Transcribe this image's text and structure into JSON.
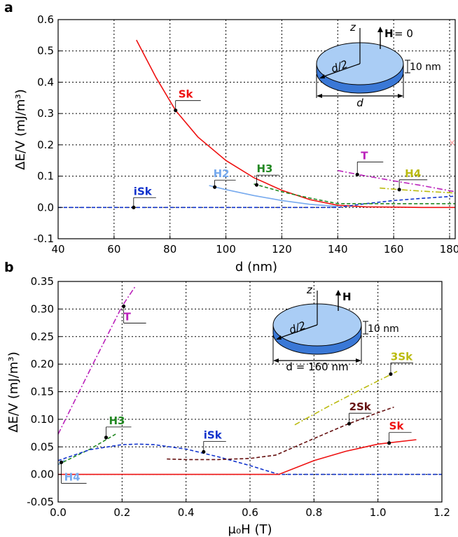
{
  "chart_data": [
    {
      "panel": "a",
      "type": "line",
      "xlabel": "d (nm)",
      "ylabel": "ΔE/V (mJ/m³)",
      "xlim": [
        40,
        182
      ],
      "ylim": [
        -0.1,
        0.6
      ],
      "xticks": [
        "40",
        "60",
        "80",
        "100",
        "120",
        "140",
        "160",
        "180"
      ],
      "yticks": [
        "-0.1",
        "0.0",
        "0.1",
        "0.2",
        "0.3",
        "0.4",
        "0.5",
        "0.6"
      ],
      "grid": true,
      "series": [
        {
          "name": "Sk",
          "color": "#ee1111",
          "dash": "solid",
          "x": [
            68,
            75,
            82,
            90,
            100,
            110,
            120,
            130,
            140,
            150,
            160,
            170,
            182
          ],
          "y": [
            0.535,
            0.415,
            0.31,
            0.225,
            0.15,
            0.095,
            0.055,
            0.025,
            0.007,
            0.002,
            0.001,
            0.0,
            0.0
          ],
          "marker": {
            "x": 82,
            "y": 0.31
          }
        },
        {
          "name": "iSk",
          "color": "#1133cc",
          "dash": "dashed",
          "x": [
            40,
            60,
            80,
            100,
            120,
            140,
            150,
            160,
            170,
            182
          ],
          "y": [
            0.0,
            0.0,
            0.0,
            0.0,
            0.0,
            0.0,
            0.012,
            0.022,
            0.029,
            0.036
          ],
          "marker": {
            "x": 67,
            "y": 0.0
          }
        },
        {
          "name": "H2",
          "color": "#77aaee",
          "dash": "solid",
          "x": [
            94,
            100,
            110,
            120,
            130,
            140
          ],
          "y": [
            0.07,
            0.057,
            0.038,
            0.022,
            0.01,
            0.003
          ],
          "marker": {
            "x": 96,
            "y": 0.065
          }
        },
        {
          "name": "H3",
          "color": "#228822",
          "dash": "dashed",
          "x": [
            110,
            120,
            130,
            140,
            150,
            160,
            170,
            182
          ],
          "y": [
            0.075,
            0.05,
            0.03,
            0.012,
            0.012,
            0.012,
            0.012,
            0.012
          ],
          "marker": {
            "x": 111,
            "y": 0.072
          }
        },
        {
          "name": "T",
          "color": "#bb22bb",
          "dash": "dashdot",
          "x": [
            140,
            148,
            160,
            170,
            182
          ],
          "y": [
            0.118,
            0.104,
            0.085,
            0.07,
            0.05
          ],
          "marker": {
            "x": 147,
            "y": 0.105
          }
        },
        {
          "name": "H4",
          "color": "#bbbb11",
          "dash": "dashdot",
          "x": [
            155,
            162,
            170,
            182
          ],
          "y": [
            0.062,
            0.057,
            0.052,
            0.046
          ],
          "marker": {
            "x": 162,
            "y": 0.057
          }
        }
      ],
      "inset": {
        "axis_label": "z",
        "field_label": "H",
        "field_value": "= 0",
        "radius_label": "d/2",
        "thickness_label": "10 nm",
        "diameter_label": "d"
      }
    },
    {
      "panel": "b",
      "type": "line",
      "xlabel": "μ₀H (T)",
      "ylabel": "ΔE/V (mJ/m³)",
      "xlim": [
        0.0,
        1.2
      ],
      "ylim": [
        -0.05,
        0.35
      ],
      "xticks": [
        "0.0",
        "0.2",
        "0.4",
        "0.6",
        "0.8",
        "1.0",
        "1.2"
      ],
      "yticks": [
        "-0.05",
        "0.00",
        "0.05",
        "0.10",
        "0.15",
        "0.20",
        "0.25",
        "0.30",
        "0.35"
      ],
      "grid": true,
      "series": [
        {
          "name": "T",
          "color": "#bb22bb",
          "dash": "dashdot",
          "x": [
            0.0,
            0.1,
            0.2,
            0.24
          ],
          "y": [
            0.073,
            0.19,
            0.305,
            0.34
          ],
          "marker": {
            "x": 0.205,
            "y": 0.305
          }
        },
        {
          "name": "H3",
          "color": "#228822",
          "dash": "dashed",
          "x": [
            0.0,
            0.05,
            0.1,
            0.15,
            0.18
          ],
          "y": [
            0.018,
            0.032,
            0.046,
            0.063,
            0.073
          ],
          "marker": {
            "x": 0.15,
            "y": 0.067
          }
        },
        {
          "name": "H4",
          "color": "#77aaee",
          "dash": "solid",
          "x": [
            0.0,
            0.01,
            0.02
          ],
          "y": [
            0.018,
            0.022,
            0.026
          ],
          "marker": {
            "x": 0.01,
            "y": 0.022
          }
        },
        {
          "name": "iSk",
          "color": "#1133cc",
          "dash": "dashed",
          "x": [
            0.0,
            0.1,
            0.2,
            0.25,
            0.3,
            0.4,
            0.5,
            0.6,
            0.69,
            0.8,
            1.0,
            1.2
          ],
          "y": [
            0.025,
            0.045,
            0.054,
            0.055,
            0.054,
            0.046,
            0.032,
            0.016,
            0.0,
            0.0,
            0.0,
            0.0
          ],
          "marker": {
            "x": 0.455,
            "y": 0.041
          }
        },
        {
          "name": "2Sk",
          "color": "#661111",
          "dash": "dashed",
          "x": [
            0.34,
            0.4,
            0.5,
            0.6,
            0.68,
            0.8,
            0.9,
            1.0,
            1.05
          ],
          "y": [
            0.028,
            0.027,
            0.027,
            0.029,
            0.035,
            0.065,
            0.09,
            0.112,
            0.122
          ],
          "marker": {
            "x": 0.91,
            "y": 0.092
          }
        },
        {
          "name": "3Sk",
          "color": "#bbbb11",
          "dash": "dashdot",
          "x": [
            0.74,
            0.85,
            0.95,
            1.06
          ],
          "y": [
            0.09,
            0.125,
            0.155,
            0.187
          ],
          "marker": {
            "x": 1.04,
            "y": 0.182
          }
        },
        {
          "name": "Sk",
          "color": "#ee1111",
          "dash": "solid",
          "x": [
            0.0,
            0.2,
            0.4,
            0.6,
            0.69,
            0.8,
            0.9,
            1.0,
            1.12
          ],
          "y": [
            0.0,
            0.0,
            0.0,
            0.0,
            0.0,
            0.025,
            0.042,
            0.055,
            0.063
          ],
          "marker": {
            "x": 1.035,
            "y": 0.057
          }
        }
      ],
      "inset": {
        "axis_label": "z",
        "field_label": "H",
        "radius_label": "d/2",
        "thickness_label": "10 nm",
        "diameter_label": "d = 160 nm"
      }
    }
  ],
  "panel_letters": [
    "a",
    "b"
  ],
  "misc": {
    "stray_marker": "×"
  }
}
